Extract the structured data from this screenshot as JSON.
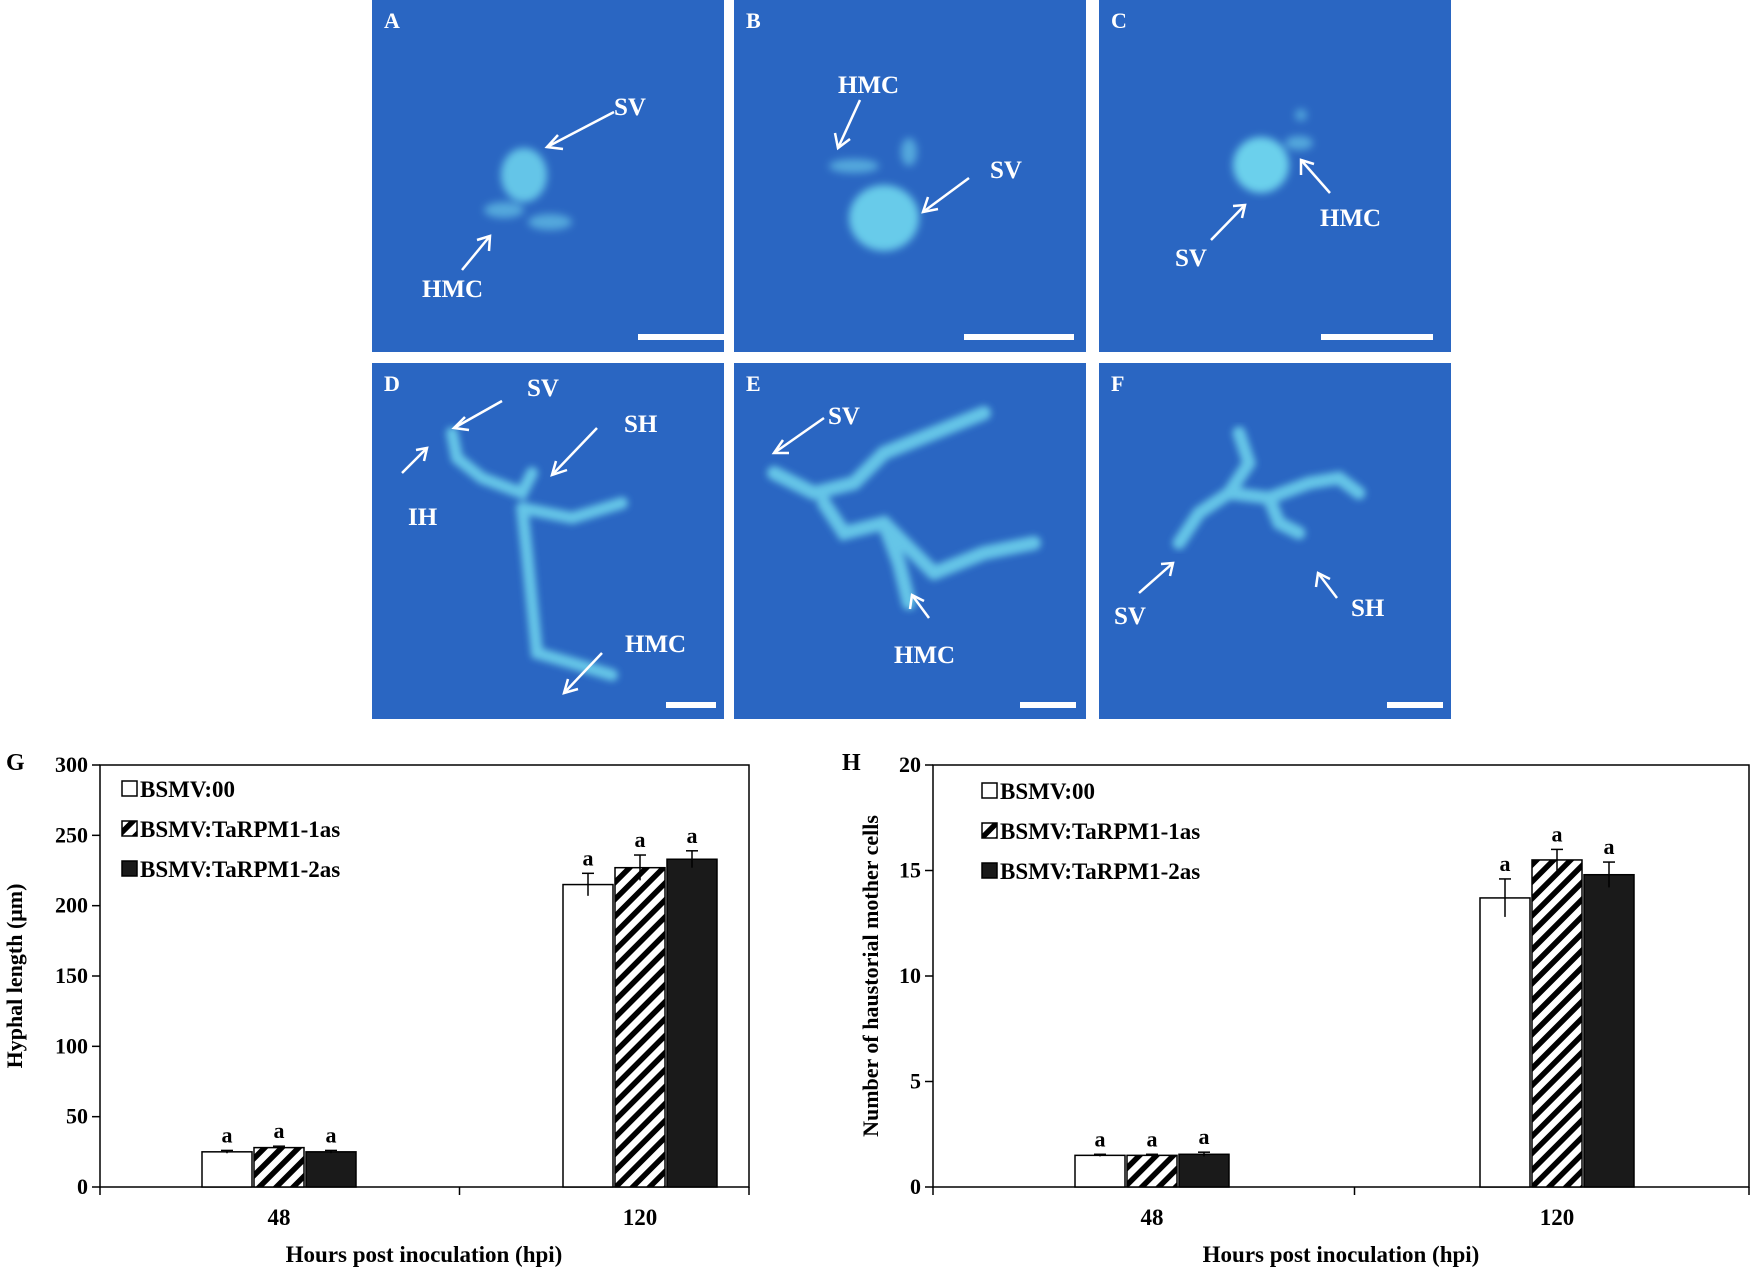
{
  "micrographs": [
    {
      "letter": "A",
      "labels": [
        "SV",
        "HMC"
      ]
    },
    {
      "letter": "B",
      "labels": [
        "HMC",
        "SV"
      ]
    },
    {
      "letter": "C",
      "labels": [
        "HMC",
        "SV"
      ]
    },
    {
      "letter": "D",
      "labels": [
        "SV",
        "SH",
        "IH",
        "HMC"
      ]
    },
    {
      "letter": "E",
      "labels": [
        "SV",
        "HMC"
      ]
    },
    {
      "letter": "F",
      "labels": [
        "SV",
        "SH"
      ]
    }
  ],
  "colors": {
    "micrograph_background": "#2a66c2",
    "fungal_stain": "#6fd6ee",
    "bar_white": "#ffffff",
    "bar_black": "#1a1a1a"
  },
  "chart_data": [
    {
      "panel": "G",
      "type": "bar",
      "xlabel": "Hours post inoculation (hpi)",
      "ylabel": "Hyphal length (μm)",
      "categories": [
        "48",
        "120"
      ],
      "ylim": [
        0,
        300
      ],
      "yticks": [
        "0",
        "50",
        "100",
        "150",
        "200",
        "250",
        "300"
      ],
      "legend_position": "top-left",
      "series": [
        {
          "name": "BSMV:00",
          "fill": "white",
          "values": [
            25,
            215
          ],
          "errors": [
            1,
            8
          ],
          "letters": [
            "a",
            "a"
          ]
        },
        {
          "name": "BSMV:TaRPM1-1as",
          "fill": "hatched",
          "values": [
            28,
            227
          ],
          "errors": [
            1,
            9
          ],
          "letters": [
            "a",
            "a"
          ]
        },
        {
          "name": "BSMV:TaRPM1-2as",
          "fill": "black",
          "values": [
            25,
            233
          ],
          "errors": [
            1,
            6
          ],
          "letters": [
            "a",
            "a"
          ]
        }
      ]
    },
    {
      "panel": "H",
      "type": "bar",
      "xlabel": "Hours post inoculation (hpi)",
      "ylabel": "Number of haustorial mother cells",
      "categories": [
        "48",
        "120"
      ],
      "ylim": [
        0,
        20
      ],
      "yticks": [
        "0",
        "5",
        "10",
        "15",
        "20"
      ],
      "legend_position": "top-left",
      "series": [
        {
          "name": "BSMV:00",
          "fill": "white",
          "values": [
            1.5,
            13.7
          ],
          "errors": [
            0.05,
            0.9
          ],
          "letters": [
            "a",
            "a"
          ]
        },
        {
          "name": "BSMV:TaRPM1-1as",
          "fill": "hatched",
          "values": [
            1.5,
            15.5
          ],
          "errors": [
            0.05,
            0.5
          ],
          "letters": [
            "a",
            "a"
          ]
        },
        {
          "name": "BSMV:TaRPM1-2as",
          "fill": "black",
          "values": [
            1.55,
            14.8
          ],
          "errors": [
            0.1,
            0.6
          ],
          "letters": [
            "a",
            "a"
          ]
        }
      ]
    }
  ]
}
